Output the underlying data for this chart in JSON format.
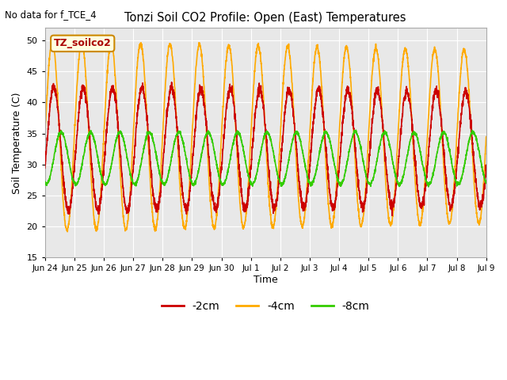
{
  "title": "Tonzi Soil CO2 Profile: Open (East) Temperatures",
  "no_data_text": "No data for f_TCE_4",
  "ylabel": "Soil Temperature (C)",
  "xlabel": "Time",
  "ylim": [
    15,
    52
  ],
  "yticks": [
    15,
    20,
    25,
    30,
    35,
    40,
    45,
    50
  ],
  "legend_label": "TZ_soilco2",
  "series": {
    "-2cm": {
      "color": "#cc0000",
      "lw": 1.2
    },
    "-4cm": {
      "color": "#ffaa00",
      "lw": 1.2
    },
    "-8cm": {
      "color": "#33cc00",
      "lw": 1.2
    }
  },
  "fig_bg": "#ffffff",
  "plot_bg": "#e8e8e8",
  "x_tick_labels": [
    "Jun 24",
    "Jun 25",
    "Jun 26",
    "Jun 27",
    "Jun 28",
    "Jun 29",
    "Jun 30",
    "Jul 1",
    "Jul 2",
    "Jul 3",
    "Jul 4",
    "Jul 5",
    "Jul 6",
    "Jul 7",
    "Jul 8",
    "Jul 9"
  ],
  "grid_color": "#ffffff",
  "grid_lw": 0.8,
  "mean_4": 34.5,
  "amp_4": 15.2,
  "mean_2": 32.5,
  "amp_2": 10.0,
  "mean_8": 31.0,
  "amp_8": 4.2,
  "phase_4_deg": 0,
  "phase_2_deg": 18,
  "phase_8_deg": 108
}
